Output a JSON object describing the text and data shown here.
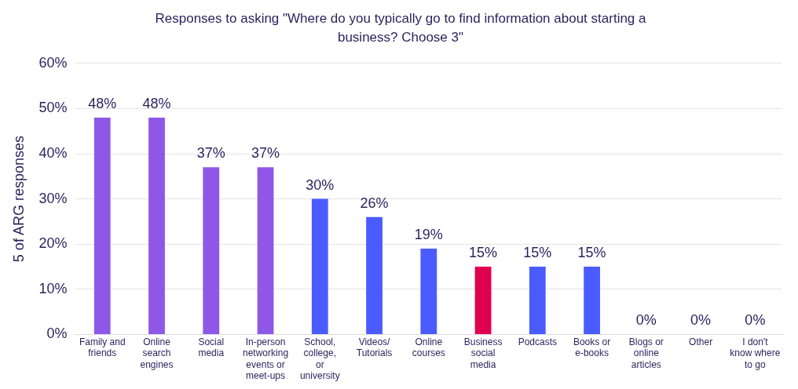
{
  "chart_data": {
    "type": "bar",
    "title": "Responses to asking \"Where do you typically go to find information about starting a business? Choose 3\"",
    "ylabel": "5 of ARG responses",
    "categories": [
      "Family and friends",
      "Online search engines",
      "Social media",
      "In-person networking events or meet-ups",
      "School, college, or university",
      "Videos/ Tutorials",
      "Online courses",
      "Business social media",
      "Podcasts",
      "Books or e-books",
      "Blogs or online articles",
      "Other",
      "I don't know where to go"
    ],
    "values": [
      48,
      48,
      37,
      37,
      30,
      26,
      19,
      15,
      15,
      15,
      0,
      0,
      0
    ],
    "colors": [
      "#8f57e8",
      "#8f57e8",
      "#8f57e8",
      "#8f57e8",
      "#4a5cff",
      "#4a5cff",
      "#4a5cff",
      "#e0004d",
      "#4a5cff",
      "#4a5cff",
      "#4a5cff",
      "#4a5cff",
      "#4a5cff"
    ],
    "value_labels": [
      "48%",
      "48%",
      "37%",
      "37%",
      "30%",
      "26%",
      "19%",
      "15%",
      "15%",
      "15%",
      "0%",
      "0%",
      "0%"
    ],
    "ylim": [
      0,
      60
    ],
    "yticks": [
      {
        "value": 0,
        "label": "0%"
      },
      {
        "value": 10,
        "label": "10%"
      },
      {
        "value": 20,
        "label": "20%"
      },
      {
        "value": 30,
        "label": "30%"
      },
      {
        "value": 40,
        "label": "40%"
      },
      {
        "value": 50,
        "label": "50%"
      },
      {
        "value": 60,
        "label": "60%"
      }
    ],
    "grid": "y",
    "legend": false
  }
}
